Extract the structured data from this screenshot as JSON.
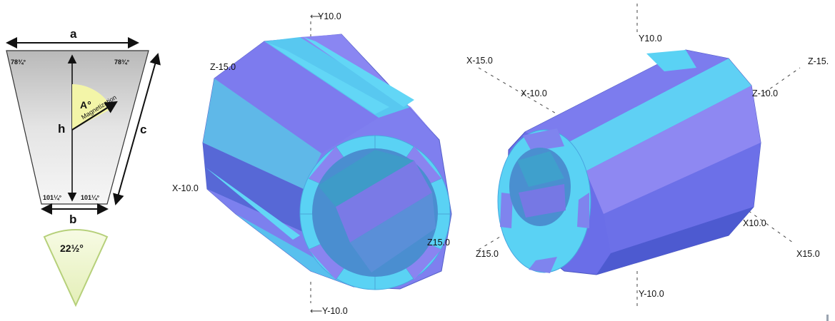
{
  "trapezoid": {
    "dim_a": "a",
    "dim_b": "b",
    "dim_c": "c",
    "dim_h": "h",
    "angle_top_left": "78¾°",
    "angle_top_right": "78¾°",
    "angle_bottom_left": "101¼°",
    "angle_bottom_right": "101¼°",
    "angle_a": "A°",
    "magnetization": "Magnetization"
  },
  "wedge": {
    "angle": "22½°"
  },
  "view_left": {
    "y_pos": "Y10.0",
    "y_neg": "Y-10.0",
    "z_neg": "Z-15.0",
    "z_pos": "Z15.0",
    "x_neg": "X-10.0"
  },
  "view_right": {
    "y_pos": "Y10.0",
    "y_neg": "Y-10.0",
    "x_neg15": "X-15.0",
    "x_neg10": "X-10.0",
    "z_neg15": "Z-15.",
    "z_neg10": "Z-10.0",
    "x_pos10": "X10.0",
    "x_pos15": "X15.0",
    "z_pos15": "Z15.0"
  },
  "colors": {
    "segment_light": "#5ad2f4",
    "segment_purple": "#8a84f0",
    "segment_dark": "#4f6fd8",
    "inner_bore": "#3a8fc0",
    "trapezoid_fill": "#d8d8d8",
    "wedge_fill": "#eef6c8",
    "wedge_stroke": "#b6d07a"
  }
}
